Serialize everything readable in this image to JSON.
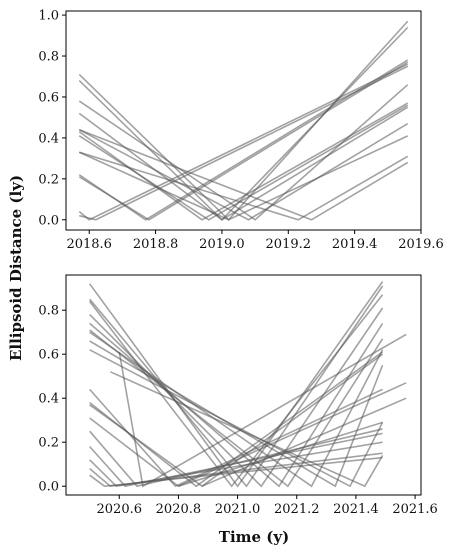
{
  "figure": {
    "ylabel": "Ellipsoid Distance (ly)",
    "xlabel": "Time (y)",
    "line_color": "#555555"
  },
  "chart_data": [
    {
      "type": "line",
      "xlim": [
        2018.53,
        2019.6
      ],
      "ylim": [
        -0.05,
        1.02
      ],
      "xticks": [
        2018.6,
        2018.8,
        2019.0,
        2019.2,
        2019.4,
        2019.6
      ],
      "xtick_labels": [
        "2018.6",
        "2018.8",
        "2019.0",
        "2019.2",
        "2019.4",
        "2019.6"
      ],
      "yticks": [
        0.0,
        0.2,
        0.4,
        0.6,
        0.8,
        1.0
      ],
      "ytick_labels": [
        "0.0",
        "0.2",
        "0.4",
        "0.6",
        "0.8",
        "1.0"
      ],
      "grid": false,
      "series": [
        {
          "x": [
            2018.57,
            2019.02,
            2019.56
          ],
          "y": [
            0.71,
            0.0,
            0.97
          ]
        },
        {
          "x": [
            2018.57,
            2019.0,
            2019.56
          ],
          "y": [
            0.68,
            0.0,
            0.94
          ]
        },
        {
          "x": [
            2018.57,
            2018.77,
            2019.56
          ],
          "y": [
            0.22,
            0.0,
            0.78
          ]
        },
        {
          "x": [
            2018.57,
            2018.78,
            2019.56
          ],
          "y": [
            0.21,
            0.0,
            0.77
          ]
        },
        {
          "x": [
            2018.57,
            2018.6,
            2019.56
          ],
          "y": [
            0.04,
            0.0,
            0.76
          ]
        },
        {
          "x": [
            2018.57,
            2018.62,
            2019.56
          ],
          "y": [
            0.02,
            0.0,
            0.75
          ]
        },
        {
          "x": [
            2018.57,
            2019.1,
            2019.56
          ],
          "y": [
            0.58,
            0.0,
            0.66
          ]
        },
        {
          "x": [
            2018.57,
            2018.94,
            2019.56
          ],
          "y": [
            0.43,
            0.0,
            0.57
          ]
        },
        {
          "x": [
            2018.57,
            2018.96,
            2019.56
          ],
          "y": [
            0.41,
            0.0,
            0.56
          ]
        },
        {
          "x": [
            2018.57,
            2019.0,
            2019.56
          ],
          "y": [
            0.52,
            0.0,
            0.55
          ]
        },
        {
          "x": [
            2018.57,
            2019.08,
            2019.56
          ],
          "y": [
            0.44,
            0.0,
            0.47
          ]
        },
        {
          "x": [
            2018.57,
            2019.02,
            2019.56
          ],
          "y": [
            0.33,
            0.0,
            0.41
          ]
        },
        {
          "x": [
            2018.57,
            2019.23,
            2019.56
          ],
          "y": [
            0.33,
            0.0,
            0.31
          ]
        },
        {
          "x": [
            2018.57,
            2019.27,
            2019.56
          ],
          "y": [
            0.44,
            0.0,
            0.28
          ]
        }
      ]
    },
    {
      "type": "line",
      "xlim": [
        2020.42,
        2021.62
      ],
      "ylim": [
        -0.04,
        0.96
      ],
      "xticks": [
        2020.6,
        2020.8,
        2021.0,
        2021.2,
        2021.4,
        2021.6
      ],
      "xtick_labels": [
        "2020.6",
        "2020.8",
        "2021.0",
        "2021.2",
        "2021.4",
        "2021.6"
      ],
      "yticks": [
        0.0,
        0.2,
        0.4,
        0.6,
        0.8
      ],
      "ytick_labels": [
        "0.0",
        "0.2",
        "0.4",
        "0.6",
        "0.8"
      ],
      "grid": false,
      "series": [
        {
          "x": [
            2020.5,
            2021.0,
            2021.49
          ],
          "y": [
            0.92,
            0.0,
            0.93
          ]
        },
        {
          "x": [
            2020.5,
            2021.03,
            2021.49
          ],
          "y": [
            0.85,
            0.0,
            0.91
          ]
        },
        {
          "x": [
            2020.5,
            2020.98,
            2021.49
          ],
          "y": [
            0.84,
            0.0,
            0.87
          ]
        },
        {
          "x": [
            2020.5,
            2021.08,
            2021.49
          ],
          "y": [
            0.78,
            0.0,
            0.81
          ]
        },
        {
          "x": [
            2020.5,
            2021.14,
            2021.49
          ],
          "y": [
            0.74,
            0.0,
            0.74
          ]
        },
        {
          "x": [
            2020.5,
            2021.17,
            2021.49
          ],
          "y": [
            0.71,
            0.0,
            0.67
          ]
        },
        {
          "x": [
            2020.5,
            2021.25,
            2021.49
          ],
          "y": [
            0.7,
            0.0,
            0.62
          ]
        },
        {
          "x": [
            2020.5,
            2020.86,
            2021.49
          ],
          "y": [
            0.38,
            0.0,
            0.61
          ]
        },
        {
          "x": [
            2020.5,
            2020.88,
            2021.49
          ],
          "y": [
            0.37,
            0.0,
            0.6
          ]
        },
        {
          "x": [
            2020.5,
            2021.33,
            2021.49
          ],
          "y": [
            0.66,
            0.0,
            0.55
          ]
        },
        {
          "x": [
            2020.5,
            2020.79,
            2021.49
          ],
          "y": [
            0.44,
            0.0,
            0.44
          ]
        },
        {
          "x": [
            2020.5,
            2020.8,
            2021.49
          ],
          "y": [
            0.31,
            0.0,
            0.29
          ]
        },
        {
          "x": [
            2020.5,
            2021.38,
            2021.49
          ],
          "y": [
            0.62,
            0.0,
            0.29
          ]
        },
        {
          "x": [
            2020.5,
            2020.66,
            2021.49
          ],
          "y": [
            0.25,
            0.0,
            0.26
          ]
        },
        {
          "x": [
            2020.5,
            2020.62,
            2021.49
          ],
          "y": [
            0.18,
            0.0,
            0.24
          ]
        },
        {
          "x": [
            2020.5,
            2020.59,
            2021.49
          ],
          "y": [
            0.12,
            0.0,
            0.2
          ]
        },
        {
          "x": [
            2020.5,
            2020.57,
            2021.49
          ],
          "y": [
            0.08,
            0.0,
            0.15
          ]
        },
        {
          "x": [
            2020.5,
            2020.55,
            2021.49
          ],
          "y": [
            0.05,
            0.0,
            0.13
          ]
        },
        {
          "x": [
            2020.57,
            2021.43,
            2021.49
          ],
          "y": [
            0.52,
            0.0,
            0.14
          ]
        },
        {
          "x": [
            2020.6,
            2020.68,
            2021.57
          ],
          "y": [
            0.61,
            0.0,
            0.69
          ]
        },
        {
          "x": [
            2020.8,
            2021.57
          ],
          "y": [
            0.0,
            0.47
          ]
        },
        {
          "x": [
            2020.88,
            2021.57
          ],
          "y": [
            0.0,
            0.4
          ]
        }
      ]
    }
  ]
}
